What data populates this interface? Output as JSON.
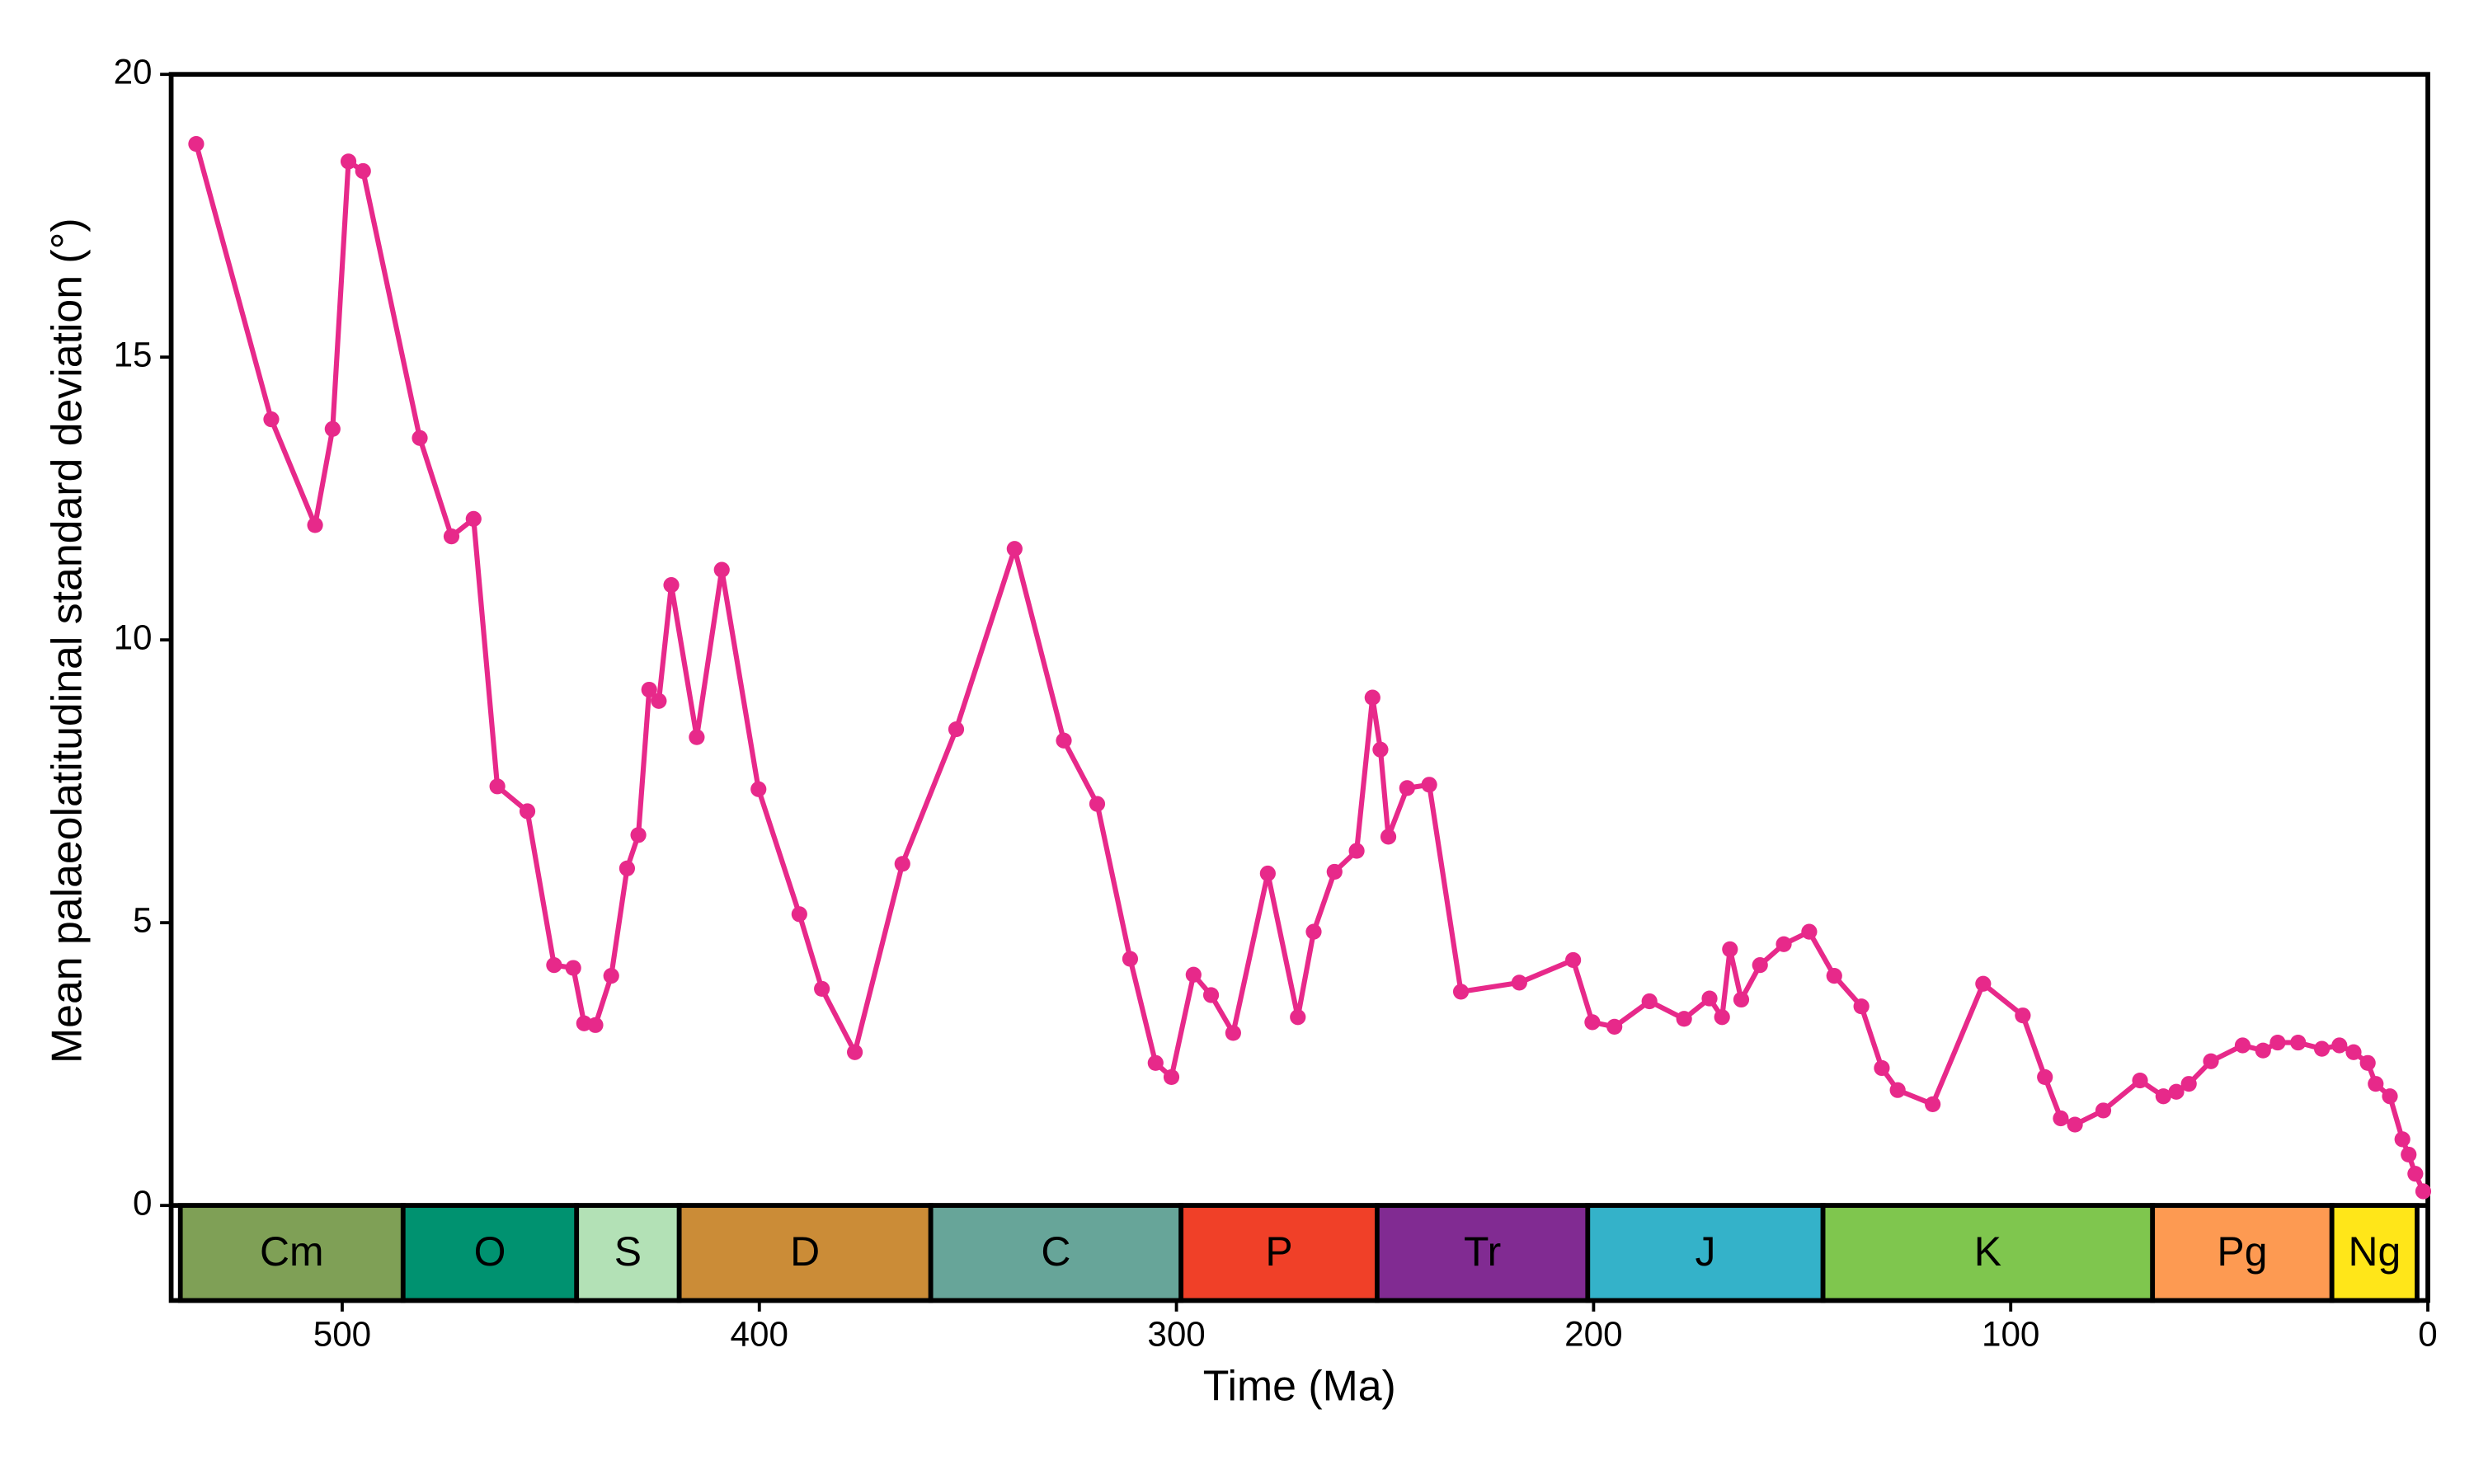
{
  "chart_data": {
    "type": "line",
    "xlabel": "Time (Ma)",
    "ylabel": "Mean palaeolatitudinal standard deviation (°)",
    "color": "#e7298a",
    "x": [
      535,
      517,
      506.5,
      502.3,
      498.5,
      495,
      481.4,
      473.8,
      468.5,
      462.8,
      455.6,
      449.2,
      444.6,
      442,
      439.3,
      435.5,
      431.7,
      429,
      426.4,
      424.1,
      421.1,
      415,
      409,
      400.2,
      390.4,
      385,
      377.1,
      365.7,
      352.8,
      338.8,
      327,
      319,
      311.1,
      305,
      301.2,
      295.9,
      291.7,
      286.4,
      278.1,
      270.9,
      267.1,
      262.1,
      256.8,
      253,
      251.1,
      249.2,
      244.7,
      239.4,
      231.8,
      217.8,
      204.9,
      200.3,
      195,
      186.6,
      178.3,
      172.2,
      169.2,
      167.3,
      164.6,
      160.1,
      154.4,
      148.3,
      142.3,
      135.8,
      130.9,
      127.1,
      118.7,
      106.6,
      97.1,
      91.8,
      88,
      84.6,
      77.8,
      69,
      63.4,
      60.3,
      57.3,
      52,
      44.4,
      39.5,
      36,
      31.1,
      25.4,
      21.2,
      17.8,
      14.4,
      12.5,
      9.1,
      6.1,
      4.6,
      3,
      1.1
    ],
    "values": [
      18.77,
      13.9,
      12.03,
      13.73,
      18.46,
      18.29,
      13.57,
      11.83,
      12.14,
      7.41,
      6.97,
      4.25,
      4.2,
      3.22,
      3.19,
      4.06,
      5.96,
      6.55,
      9.12,
      8.92,
      10.97,
      8.28,
      11.24,
      7.36,
      5.15,
      3.83,
      2.71,
      6.04,
      8.42,
      11.61,
      8.22,
      7.1,
      4.36,
      2.52,
      2.27,
      4.08,
      3.72,
      3.05,
      5.87,
      3.33,
      4.84,
      5.9,
      6.27,
      8.98,
      8.06,
      6.52,
      7.38,
      7.44,
      3.78,
      3.94,
      4.34,
      3.24,
      3.16,
      3.61,
      3.3,
      3.66,
      3.33,
      4.53,
      3.64,
      4.25,
      4.62,
      4.84,
      4.06,
      3.52,
      2.43,
      2.04,
      1.79,
      3.92,
      3.36,
      2.27,
      1.54,
      1.43,
      1.68,
      2.21,
      1.93,
      2.01,
      2.15,
      2.55,
      2.83,
      2.74,
      2.88,
      2.88,
      2.77,
      2.83,
      2.71,
      2.52,
      2.15,
      1.93,
      1.17,
      0.9,
      0.56,
      0.25
    ],
    "xlim": [
      541,
      0
    ],
    "xticks": [
      500,
      400,
      300,
      200,
      100,
      0
    ],
    "ylim": [
      -1.68,
      20
    ],
    "yticks": [
      0,
      5,
      10,
      15,
      20
    ],
    "periods": [
      {
        "name": "Cm",
        "start": 538.8,
        "end": 485.4,
        "color": "#7fa056"
      },
      {
        "name": "O",
        "start": 485.4,
        "end": 443.8,
        "color": "#009270"
      },
      {
        "name": "S",
        "start": 443.8,
        "end": 419.2,
        "color": "#b3e1b6"
      },
      {
        "name": "D",
        "start": 419.2,
        "end": 358.9,
        "color": "#cb8c37"
      },
      {
        "name": "C",
        "start": 358.9,
        "end": 298.9,
        "color": "#67a599"
      },
      {
        "name": "P",
        "start": 298.9,
        "end": 251.9,
        "color": "#f04028"
      },
      {
        "name": "Tr",
        "start": 251.9,
        "end": 201.4,
        "color": "#812b92"
      },
      {
        "name": "J",
        "start": 201.4,
        "end": 145,
        "color": "#34b2c9"
      },
      {
        "name": "K",
        "start": 145,
        "end": 66,
        "color": "#7fc64e"
      },
      {
        "name": "Pg",
        "start": 66,
        "end": 23,
        "color": "#fd9a52"
      },
      {
        "name": "Ng",
        "start": 23,
        "end": 2.58,
        "color": "#ffe619"
      }
    ]
  }
}
